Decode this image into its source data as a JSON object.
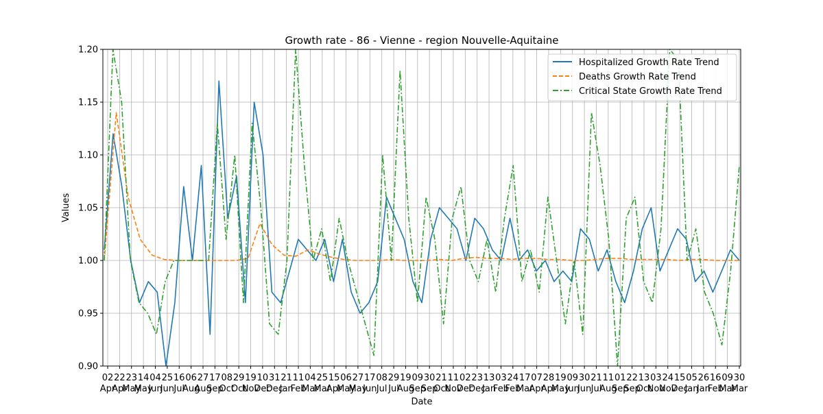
{
  "chart_data": {
    "type": "line",
    "title": "Growth rate - 86 - Vienne - region Nouvelle-Aquitaine",
    "xlabel": "Date",
    "ylabel": "Values",
    "ylim": [
      0.9,
      1.2
    ],
    "yticks": [
      0.9,
      0.95,
      1.0,
      1.05,
      1.1,
      1.15,
      1.2
    ],
    "grid": true,
    "legend_position": "top-right",
    "x_tick_labels": [
      {
        "day": "02",
        "month": "Apr"
      },
      {
        "day": "22",
        "month": "Apr"
      },
      {
        "day": "23",
        "month": "May"
      },
      {
        "day": "14",
        "month": "May"
      },
      {
        "day": "04",
        "month": "Jun"
      },
      {
        "day": "25",
        "month": "Jun"
      },
      {
        "day": "16",
        "month": "Jul"
      },
      {
        "day": "06",
        "month": "Aug"
      },
      {
        "day": "27",
        "month": "Aug"
      },
      {
        "day": "17",
        "month": "Sep"
      },
      {
        "day": "08",
        "month": "Oct"
      },
      {
        "day": "29",
        "month": "Oct"
      },
      {
        "day": "19",
        "month": "Nov"
      },
      {
        "day": "10",
        "month": "Dec"
      },
      {
        "day": "31",
        "month": "Dec"
      },
      {
        "day": "21",
        "month": "Jan"
      },
      {
        "day": "11",
        "month": "Feb"
      },
      {
        "day": "04",
        "month": "Mar"
      },
      {
        "day": "25",
        "month": "Mar"
      },
      {
        "day": "15",
        "month": "Apr"
      },
      {
        "day": "06",
        "month": "May"
      },
      {
        "day": "27",
        "month": "May"
      },
      {
        "day": "17",
        "month": "Jun"
      },
      {
        "day": "08",
        "month": "Jul"
      },
      {
        "day": "29",
        "month": "Jul"
      },
      {
        "day": "19",
        "month": "Aug"
      },
      {
        "day": "09",
        "month": "Sep"
      },
      {
        "day": "30",
        "month": "Sep"
      },
      {
        "day": "21",
        "month": "Oct"
      },
      {
        "day": "11",
        "month": "Nov"
      },
      {
        "day": "02",
        "month": "Dec"
      },
      {
        "day": "23",
        "month": "Dec"
      },
      {
        "day": "13",
        "month": "Jan"
      },
      {
        "day": "03",
        "month": "Feb"
      },
      {
        "day": "24",
        "month": "Feb"
      },
      {
        "day": "17",
        "month": "Mar"
      },
      {
        "day": "07",
        "month": "Apr"
      },
      {
        "day": "28",
        "month": "Apr"
      },
      {
        "day": "19",
        "month": "May"
      },
      {
        "day": "09",
        "month": "Jun"
      },
      {
        "day": "30",
        "month": "Jun"
      },
      {
        "day": "21",
        "month": "Jul"
      },
      {
        "day": "11",
        "month": "Aug"
      },
      {
        "day": "01",
        "month": "Sep"
      },
      {
        "day": "22",
        "month": "Sep"
      },
      {
        "day": "13",
        "month": "Oct"
      },
      {
        "day": "03",
        "month": "Nov"
      },
      {
        "day": "24",
        "month": "Nov"
      },
      {
        "day": "15",
        "month": "Dec"
      },
      {
        "day": "05",
        "month": "Jan"
      },
      {
        "day": "26",
        "month": "Jan"
      },
      {
        "day": "16",
        "month": "Feb"
      },
      {
        "day": "09",
        "month": "Mar"
      },
      {
        "day": "30",
        "month": "Mar"
      }
    ],
    "series": [
      {
        "name": "Hospitalized Growth Rate Trend",
        "color": "#1f77b4",
        "style": "solid",
        "values": [
          1.01,
          1.12,
          1.07,
          1.0,
          0.96,
          0.98,
          0.97,
          0.9,
          0.96,
          1.07,
          1.0,
          1.09,
          0.93,
          1.17,
          1.04,
          1.08,
          0.96,
          1.15,
          1.1,
          0.97,
          0.96,
          0.99,
          1.02,
          1.01,
          1.0,
          1.02,
          0.98,
          1.02,
          0.97,
          0.95,
          0.96,
          0.98,
          1.06,
          1.04,
          1.02,
          0.98,
          0.96,
          1.02,
          1.05,
          1.04,
          1.03,
          1.0,
          1.04,
          1.03,
          1.01,
          1.0,
          1.04,
          1.0,
          1.01,
          0.99,
          1.0,
          0.98,
          0.99,
          0.98,
          1.03,
          1.02,
          0.99,
          1.01,
          0.98,
          0.96,
          0.99,
          1.03,
          1.05,
          0.99,
          1.01,
          1.03,
          1.02,
          0.98,
          0.99,
          0.97,
          0.99,
          1.01,
          1.0
        ]
      },
      {
        "name": "Deaths Growth Rate Trend",
        "color": "#ff7f0e",
        "style": "dashed",
        "values": [
          1.0,
          1.14,
          1.06,
          1.02,
          1.005,
          1.001,
          1.0,
          1.0,
          1.0,
          1.0,
          1.0,
          1.0,
          1.002,
          1.035,
          1.015,
          1.005,
          1.004,
          1.01,
          1.006,
          1.003,
          1.001,
          1.0,
          1.0,
          1.0,
          1.001,
          1.0,
          1.0,
          1.0,
          1.001,
          1.0,
          1.002,
          1.003,
          1.002,
          1.002,
          1.001,
          1.002,
          1.002,
          1.001,
          1.001,
          1.0,
          1.0,
          1.001,
          1.002,
          1.002,
          1.001,
          1.001,
          1.001,
          1.001,
          1.0,
          1.001,
          1.001,
          1.0,
          1.0,
          1.0
        ]
      },
      {
        "name": "Critical State Growth Rate Trend",
        "color": "#2ca02c",
        "style": "dashdot",
        "values": [
          1.0,
          1.2,
          1.15,
          1.0,
          0.96,
          0.95,
          0.93,
          0.98,
          1.0,
          1.0,
          1.0,
          1.0,
          1.0,
          1.13,
          1.02,
          1.1,
          0.96,
          1.13,
          1.05,
          0.94,
          0.93,
          1.0,
          1.2,
          1.09,
          1.0,
          1.03,
          0.98,
          1.04,
          1.0,
          0.97,
          0.94,
          0.91,
          1.1,
          1.0,
          1.18,
          1.04,
          0.96,
          1.06,
          1.02,
          0.94,
          1.04,
          1.07,
          1.0,
          0.98,
          1.02,
          0.97,
          1.04,
          1.09,
          0.98,
          1.01,
          0.97,
          1.06,
          1.0,
          0.94,
          1.0,
          0.93,
          1.14,
          1.09,
          1.02,
          0.9,
          1.04,
          1.06,
          0.98,
          0.96,
          1.03,
          1.2,
          1.19,
          1.0,
          1.03,
          0.97,
          0.95,
          0.92,
          0.99,
          1.09
        ]
      }
    ]
  }
}
